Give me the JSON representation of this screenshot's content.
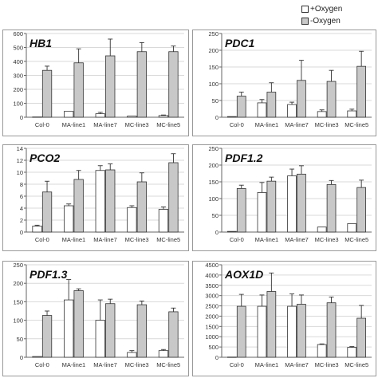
{
  "legend": {
    "items": [
      {
        "label": "+Oxygen",
        "color": "#ffffff"
      },
      {
        "label": "-Oxygen",
        "color": "#c8c8c8"
      }
    ]
  },
  "colors": {
    "oxygen_plus": "#ffffff",
    "oxygen_minus": "#c8c8c8",
    "bar_stroke": "#333333",
    "panel_border": "#999999",
    "grid": "#d9d9d9"
  },
  "chart_data": [
    {
      "type": "bar",
      "title": "HB1",
      "categories": [
        "Col-0",
        "MA-line1",
        "MA-line7",
        "MC-line3",
        "MC-line5"
      ],
      "ylim": [
        0,
        600
      ],
      "yticks": [
        0,
        100,
        200,
        300,
        400,
        500,
        600
      ],
      "grid": true,
      "series": [
        {
          "name": "+Oxygen",
          "values": [
            2,
            42,
            25,
            8,
            12
          ],
          "errors": [
            0,
            0,
            10,
            0,
            4
          ]
        },
        {
          "name": "-Oxygen",
          "values": [
            336,
            390,
            440,
            470,
            470
          ],
          "errors": [
            30,
            100,
            120,
            65,
            40
          ]
        }
      ]
    },
    {
      "type": "bar",
      "title": "PDC1",
      "categories": [
        "Col-0",
        "MA-line1",
        "MA-line7",
        "MC-line3",
        "MC-line5"
      ],
      "ylim": [
        0,
        250
      ],
      "yticks": [
        0,
        50,
        100,
        150,
        200,
        250
      ],
      "grid": true,
      "series": [
        {
          "name": "+Oxygen",
          "values": [
            2,
            43,
            38,
            17,
            19
          ],
          "errors": [
            0,
            10,
            7,
            5,
            5
          ]
        },
        {
          "name": "-Oxygen",
          "values": [
            63,
            75,
            110,
            107,
            152
          ],
          "errors": [
            12,
            28,
            60,
            33,
            45
          ]
        }
      ]
    },
    {
      "type": "bar",
      "title": "PCO2",
      "categories": [
        "Col-0",
        "MA-line1",
        "MA-line7",
        "MC-line3",
        "MC-line5"
      ],
      "ylim": [
        0,
        14
      ],
      "yticks": [
        0,
        2,
        4,
        6,
        8,
        10,
        12,
        14
      ],
      "grid": true,
      "series": [
        {
          "name": "+Oxygen",
          "values": [
            1.0,
            4.4,
            10.3,
            4.1,
            3.8
          ],
          "errors": [
            0.15,
            0.3,
            0.8,
            0.3,
            0.4
          ]
        },
        {
          "name": "-Oxygen",
          "values": [
            6.7,
            8.8,
            10.4,
            8.4,
            11.6
          ],
          "errors": [
            1.8,
            1.5,
            1.0,
            1.5,
            1.5
          ]
        }
      ]
    },
    {
      "type": "bar",
      "title": "PDF1.2",
      "categories": [
        "Col-0",
        "MA-line1",
        "MA-line7",
        "MC-line3",
        "MC-line5"
      ],
      "ylim": [
        0,
        250
      ],
      "yticks": [
        0,
        50,
        100,
        150,
        200,
        250
      ],
      "grid": true,
      "series": [
        {
          "name": "+Oxygen",
          "values": [
            2,
            118,
            168,
            15,
            25
          ],
          "errors": [
            0,
            30,
            20,
            0,
            0
          ]
        },
        {
          "name": "-Oxygen",
          "values": [
            130,
            152,
            173,
            142,
            133
          ],
          "errors": [
            10,
            12,
            25,
            12,
            22
          ]
        }
      ]
    },
    {
      "type": "bar",
      "title": "PDF1.3",
      "categories": [
        "Col-0",
        "MA-line1",
        "MA-line7",
        "MC-line3",
        "MC-line5"
      ],
      "ylim": [
        0,
        250
      ],
      "yticks": [
        0,
        50,
        100,
        150,
        200,
        250
      ],
      "grid": true,
      "series": [
        {
          "name": "+Oxygen",
          "values": [
            2,
            155,
            100,
            13,
            18
          ],
          "errors": [
            0,
            55,
            55,
            5,
            3
          ]
        },
        {
          "name": "-Oxygen",
          "values": [
            113,
            180,
            145,
            142,
            123
          ],
          "errors": [
            12,
            5,
            12,
            10,
            10
          ]
        }
      ]
    },
    {
      "type": "bar",
      "title": "AOX1D",
      "categories": [
        "Col-0",
        "MA-line1",
        "MA-line7",
        "MC-line3",
        "MC-line5"
      ],
      "ylim": [
        0,
        4500
      ],
      "yticks": [
        0,
        500,
        1000,
        1500,
        2000,
        2500,
        3000,
        3500,
        4000,
        4500
      ],
      "grid": true,
      "series": [
        {
          "name": "+Oxygen",
          "values": [
            10,
            2480,
            2480,
            620,
            480
          ],
          "errors": [
            0,
            550,
            600,
            30,
            40
          ]
        },
        {
          "name": "-Oxygen",
          "values": [
            2480,
            3200,
            2580,
            2650,
            1900
          ],
          "errors": [
            580,
            900,
            450,
            280,
            620
          ]
        }
      ]
    }
  ]
}
